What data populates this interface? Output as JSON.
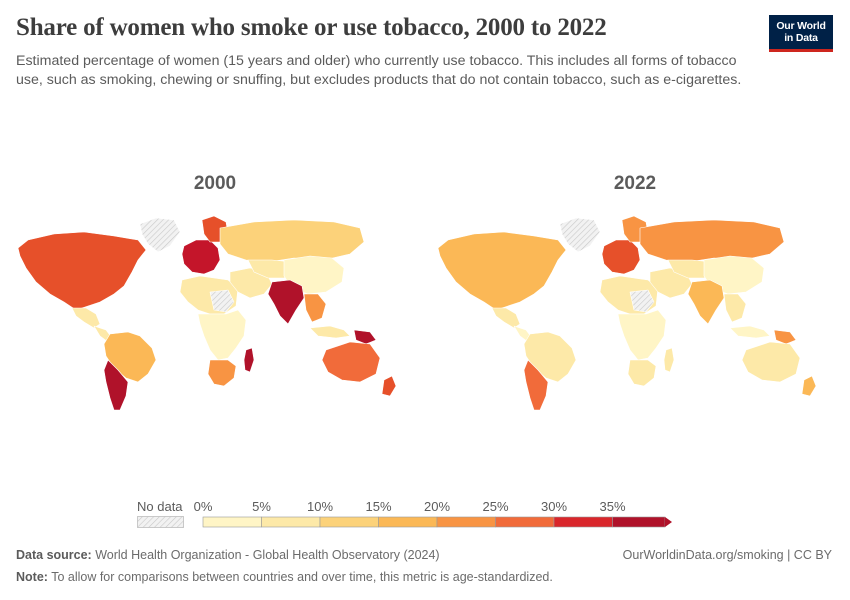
{
  "header": {
    "title": "Share of women who smoke or use tobacco, 2000 to 2022",
    "subtitle": "Estimated percentage of women (15 years and older) who currently use tobacco. This includes all forms of tobacco use, such as smoking, chewing or snuffing, but excludes products that do not contain tobacco, such as e-cigarettes."
  },
  "logo": {
    "line1": "Our World",
    "line2": "in Data",
    "background": "#002147",
    "accent": "#ce261e"
  },
  "maps": [
    {
      "year": "2000",
      "regions": {
        "north_america": "#e6502a",
        "greenland": "nodata",
        "mexico": "#fde9a8",
        "central_america": "#fde9a8",
        "south_america": "#fbb856",
        "chile_argentina": "#b0122a",
        "europe_west": "#c4152a",
        "scandinavia": "#e6502a",
        "russia": "#fcd27a",
        "north_africa": "#fde9a8",
        "sahara": "nodata",
        "sub_saharan": "#fff5c6",
        "southern_africa": "#f89443",
        "madagascar": "#b0122a",
        "middle_east": "#fde9a8",
        "central_asia": "#fde9a8",
        "china": "#fff5c6",
        "india": "#b0122a",
        "southeast_asia": "#f89443",
        "indonesia": "#fde9a8",
        "papua": "#b0122a",
        "australia": "#f16b3a",
        "new_zealand": "#e6502a"
      }
    },
    {
      "year": "2022",
      "regions": {
        "north_america": "#fbb856",
        "greenland": "nodata",
        "mexico": "#fde9a8",
        "central_america": "#fff5c6",
        "south_america": "#fde9a8",
        "chile_argentina": "#f16b3a",
        "europe_west": "#e6502a",
        "scandinavia": "#f89443",
        "russia": "#f89443",
        "north_africa": "#fde9a8",
        "sahara": "nodata",
        "sub_saharan": "#fff5c6",
        "southern_africa": "#fde9a8",
        "madagascar": "#fde9a8",
        "middle_east": "#fde9a8",
        "central_asia": "#fde9a8",
        "china": "#fff5c6",
        "india": "#fbb856",
        "southeast_asia": "#fde9a8",
        "indonesia": "#fff5c6",
        "papua": "#f89443",
        "australia": "#fde9a8",
        "new_zealand": "#fbb856"
      }
    }
  ],
  "legend": {
    "nodata_label": "No data",
    "ticks": [
      "0%",
      "5%",
      "10%",
      "15%",
      "20%",
      "25%",
      "30%",
      "35%"
    ],
    "bin_colors": [
      "#fff5c6",
      "#fde9a8",
      "#fcd27a",
      "#fbb856",
      "#f89443",
      "#f16b3a",
      "#d9262b",
      "#b0122a"
    ]
  },
  "footer": {
    "source_label": "Data source:",
    "source_text": "World Health Organization - Global Health Observatory (2024)",
    "note_label": "Note:",
    "note_text": "To allow for comparisons between countries and over time, this metric is age-standardized.",
    "right_text": "OurWorldinData.org/smoking | CC BY"
  }
}
